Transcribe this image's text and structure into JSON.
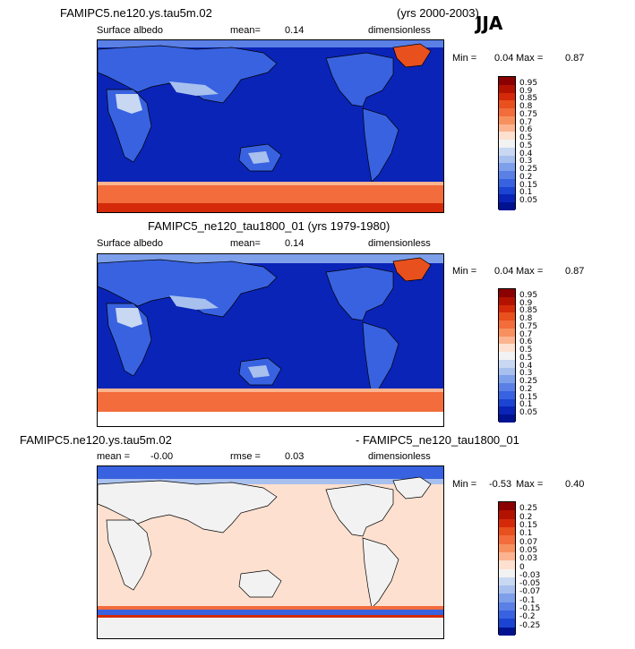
{
  "season": "JJA",
  "panel1": {
    "case": "FAMIPC5.ne120.ys.tau5m.02",
    "years": "(yrs 2000-2003)",
    "variable": "Surface albedo",
    "mean_label": "mean=",
    "mean_value": "0.14",
    "units": "dimensionless",
    "min_label": "Min =",
    "min_value": "0.04",
    "max_label": "Max =",
    "max_value": "0.87"
  },
  "panel2": {
    "case": "FAMIPC5_ne120_tau1800_01 (yrs 1979-1980)",
    "variable": "Surface albedo",
    "mean_label": "mean=",
    "mean_value": "0.14",
    "units": "dimensionless",
    "min_label": "Min =",
    "min_value": "0.04",
    "max_label": "Max =",
    "max_value": "0.87"
  },
  "panel3": {
    "case_a": "FAMIPC5.ne120.ys.tau5m.02",
    "case_b": "- FAMIPC5_ne120_tau1800_01",
    "mean_label": "mean =",
    "mean_value": "-0.00",
    "rmse_label": "rmse =",
    "rmse_value": "0.03",
    "units": "dimensionless",
    "min_label": "Min =",
    "min_value": "-0.53",
    "max_label": "Max =",
    "max_value": "0.40"
  },
  "colorbar_abs": {
    "labels": [
      "0.95",
      "0.9",
      "0.85",
      "0.8",
      "0.75",
      "0.7",
      "0.6",
      "0.5",
      "0.5",
      "0.4",
      "0.3",
      "0.25",
      "0.2",
      "0.15",
      "0.1",
      "0.05"
    ],
    "colors": [
      "#8b0000",
      "#b31200",
      "#d42a0a",
      "#e8501e",
      "#f26c3c",
      "#f7905f",
      "#fbb48f",
      "#fde0cf",
      "#f2f2f2",
      "#c8d8f2",
      "#a8c0ee",
      "#7ea0ea",
      "#5a80e6",
      "#3862e0",
      "#1c44d2",
      "#0a24b8",
      "#00128f"
    ]
  },
  "colorbar_diff": {
    "labels": [
      "0.25",
      "0.2",
      "0.15",
      "0.1",
      "0.07",
      "0.05",
      "0.03",
      "0",
      "-0.03",
      "-0.05",
      "-0.07",
      "-0.1",
      "-0.15",
      "-0.2",
      "-0.25"
    ],
    "colors": [
      "#8b0000",
      "#b31200",
      "#d42a0a",
      "#e8501e",
      "#f26c3c",
      "#f7905f",
      "#fbb48f",
      "#fde0cf",
      "#f2f2f2",
      "#c8d8f2",
      "#a8c0ee",
      "#7ea0ea",
      "#5a80e6",
      "#3862e0",
      "#1c44d2",
      "#00128f"
    ]
  }
}
